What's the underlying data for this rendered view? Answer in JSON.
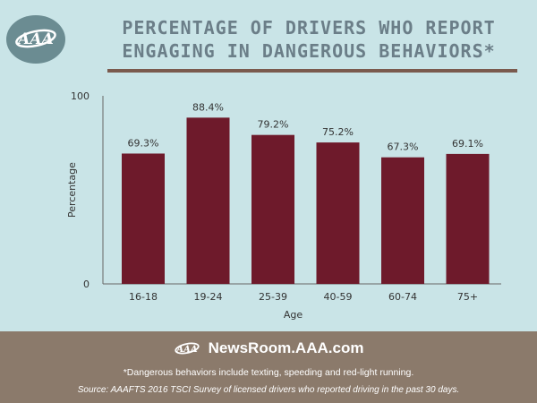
{
  "header": {
    "title": "Percentage of drivers who report engaging in dangerous behaviors*"
  },
  "colors": {
    "background": "#c9e4e7",
    "bar": "#6e1a2b",
    "footer": "#8b7a6b",
    "logo_circle": "#6b8c92",
    "title": "#6b7e88"
  },
  "chart_data": {
    "type": "bar",
    "categories": [
      "16-18",
      "19-24",
      "25-39",
      "40-59",
      "60-74",
      "75+"
    ],
    "values": [
      69.3,
      88.4,
      79.2,
      75.2,
      67.3,
      69.1
    ],
    "data_labels": [
      "69.3%",
      "88.4%",
      "79.2%",
      "75.2%",
      "67.3%",
      "69.1%"
    ],
    "xlabel": "Age",
    "ylabel": "Percentage",
    "ylim": [
      0,
      100
    ],
    "yticks": [
      0,
      100
    ],
    "grid": false
  },
  "footer": {
    "brand": "NewsRoom.AAA.com",
    "note": "*Dangerous behaviors include texting, speeding and red-light running.",
    "source": "Source: AAAFTS 2016 TSCI Survey of licensed drivers who reported driving in the past 30 days."
  }
}
